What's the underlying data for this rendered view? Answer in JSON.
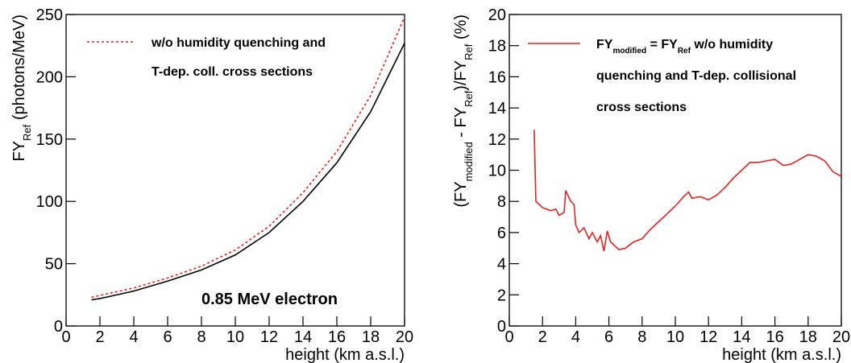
{
  "chart_data": [
    {
      "type": "line",
      "xlabel": "height (km a.s.l.)",
      "ylabel": [
        {
          "text": "FY"
        },
        {
          "text": "Ref",
          "sub": true
        },
        {
          "text": " (photons/MeV)"
        }
      ],
      "xlim": [
        0,
        20
      ],
      "xticks": [
        0,
        2,
        4,
        6,
        8,
        10,
        12,
        14,
        16,
        18,
        20
      ],
      "ylim": [
        0,
        250
      ],
      "yticks": [
        0,
        50,
        100,
        150,
        200,
        250
      ],
      "annotation": "0.85 MeV electron",
      "series": [
        {
          "color": "#000000",
          "dash": false,
          "x": [
            1.5,
            2,
            4,
            6,
            8,
            10,
            12,
            14,
            16,
            18,
            20
          ],
          "values": [
            21,
            22,
            28,
            36,
            45,
            57,
            75,
            100,
            131,
            172,
            227
          ]
        },
        {
          "name": [
            [
              {
                "text": "w/o humidity quenching and"
              }
            ],
            [
              {
                "text": "T-dep. coll. cross sections"
              }
            ]
          ],
          "color": "#e8201e",
          "dash": true,
          "x": [
            1.5,
            2,
            4,
            6,
            8,
            10,
            12,
            14,
            16,
            18,
            20
          ],
          "values": [
            23,
            24.5,
            30.5,
            38.5,
            48,
            61,
            80,
            107,
            140,
            185,
            248
          ]
        }
      ]
    },
    {
      "type": "line",
      "xlabel": "height (km a.s.l.)",
      "ylabel": [
        {
          "text": "(FY"
        },
        {
          "text": "modified",
          "sub": true
        },
        {
          "text": " - FY"
        },
        {
          "text": "Ref",
          "sub": true
        },
        {
          "text": ")/FY"
        },
        {
          "text": "Ref",
          "sub": true
        },
        {
          "text": " (%)"
        }
      ],
      "xlim": [
        0,
        20
      ],
      "xticks": [
        0,
        2,
        4,
        6,
        8,
        10,
        12,
        14,
        16,
        18,
        20
      ],
      "ylim": [
        0,
        20
      ],
      "yticks": [
        0,
        2,
        4,
        6,
        8,
        10,
        12,
        14,
        16,
        18,
        20
      ],
      "series": [
        {
          "name": [
            [
              {
                "text": "FY"
              },
              {
                "text": "modified",
                "sub": true
              },
              {
                "text": " = FY"
              },
              {
                "text": "Ref",
                "sub": true
              },
              {
                "text": " w/o humidity"
              }
            ],
            [
              {
                "text": "quenching and T-dep. collisional"
              }
            ],
            [
              {
                "text": "cross sections"
              }
            ]
          ],
          "color": "#e8201e",
          "dash": false,
          "x": [
            1.5,
            1.6,
            2,
            2.5,
            2.8,
            3,
            3.3,
            3.4,
            3.7,
            3.9,
            4,
            4.2,
            4.5,
            4.8,
            5,
            5.3,
            5.5,
            5.7,
            5.9,
            6.1,
            6.3,
            6.6,
            7,
            7.5,
            8,
            8.5,
            9,
            9.5,
            10,
            10.5,
            10.8,
            11,
            11.5,
            12,
            12.5,
            13,
            13.5,
            14,
            14.5,
            15,
            15.5,
            16,
            16.5,
            17,
            17.5,
            18,
            18.5,
            19,
            19.5,
            20
          ],
          "values": [
            12.6,
            8.0,
            7.6,
            7.4,
            7.5,
            7.1,
            7.3,
            8.7,
            8.0,
            7.8,
            6.5,
            6.0,
            6.3,
            5.6,
            6.0,
            5.4,
            5.8,
            4.8,
            6.1,
            5.4,
            5.2,
            4.9,
            5.0,
            5.4,
            5.6,
            6.2,
            6.7,
            7.2,
            7.7,
            8.3,
            8.6,
            8.2,
            8.3,
            8.1,
            8.4,
            8.9,
            9.5,
            10.0,
            10.5,
            10.5,
            10.6,
            10.7,
            10.3,
            10.4,
            10.7,
            11.0,
            10.9,
            10.6,
            9.9,
            9.6
          ]
        }
      ]
    }
  ]
}
